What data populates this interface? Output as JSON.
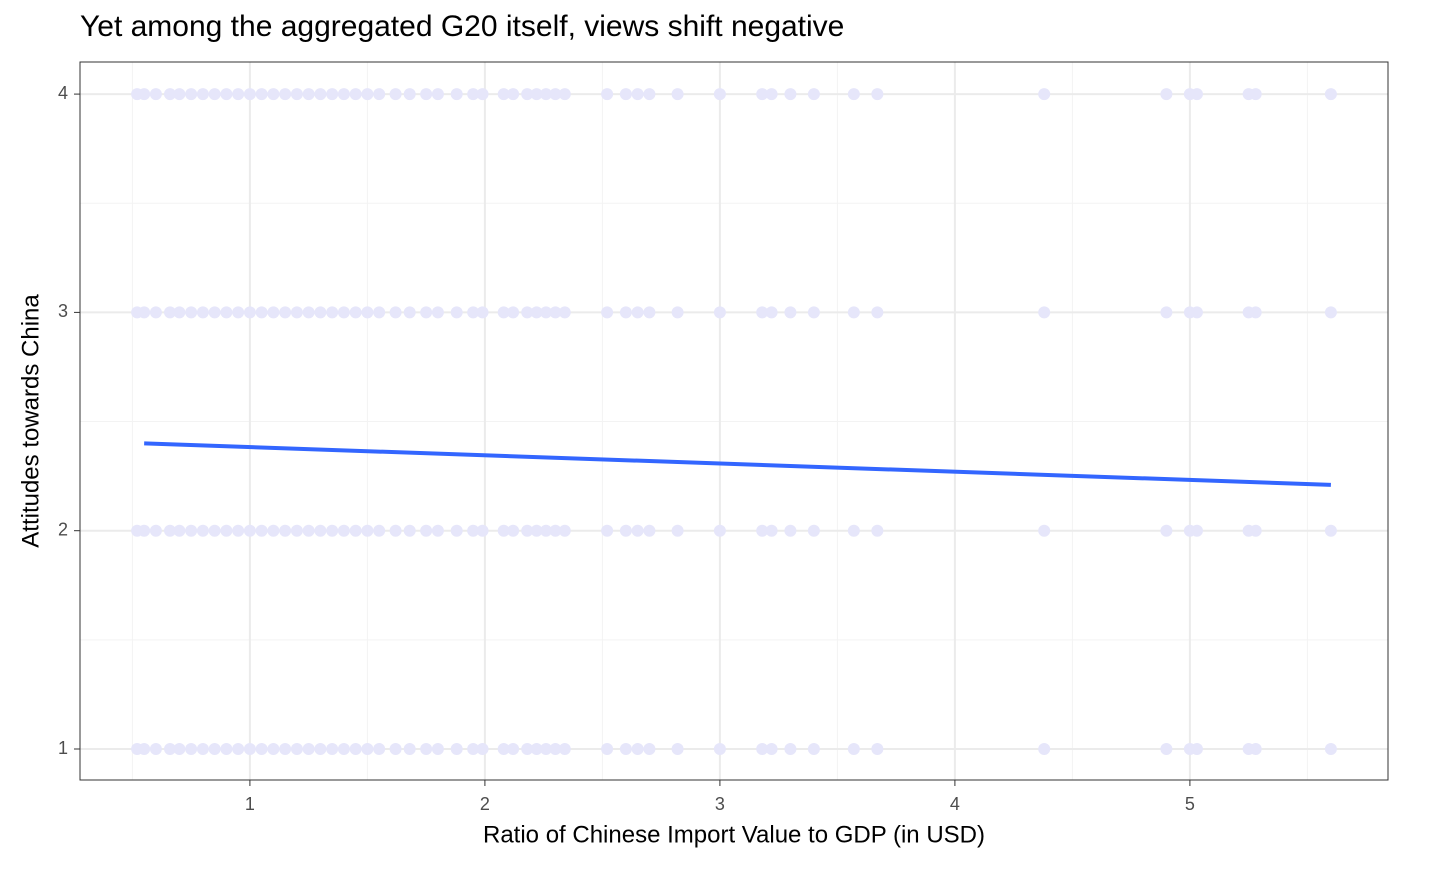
{
  "chart_data": {
    "type": "scatter",
    "title": "Yet among the aggregated G20 itself, views shift negative",
    "xlabel": "Ratio of Chinese Import Value to GDP (in USD)",
    "ylabel": "Attitudes towards China",
    "xlim": [
      0.277,
      5.843
    ],
    "ylim": [
      0.858,
      4.147
    ],
    "xticks": [
      1,
      2,
      3,
      4,
      5
    ],
    "yticks": [
      1,
      2,
      3,
      4
    ],
    "grid": true,
    "series": [
      {
        "color": "#e6e6fa",
        "x": [
          0.52,
          0.55,
          0.6,
          0.66,
          0.7,
          0.75,
          0.8,
          0.85,
          0.9,
          0.95,
          1.0,
          1.05,
          1.1,
          1.15,
          1.2,
          1.25,
          1.3,
          1.35,
          1.4,
          1.45,
          1.5,
          1.55,
          1.62,
          1.68,
          1.75,
          1.8,
          1.88,
          1.95,
          1.99,
          2.08,
          2.12,
          2.18,
          2.22,
          2.26,
          2.3,
          2.34,
          2.52,
          2.6,
          2.65,
          2.7,
          2.82,
          3.0,
          3.18,
          3.22,
          3.3,
          3.4,
          3.57,
          3.67,
          4.38,
          4.9,
          5.0,
          5.03,
          5.25,
          5.28,
          5.6,
          0.52,
          0.55,
          0.6,
          0.66,
          0.7,
          0.75,
          0.8,
          0.85,
          0.9,
          0.95,
          1.0,
          1.05,
          1.1,
          1.15,
          1.2,
          1.25,
          1.3,
          1.35,
          1.4,
          1.45,
          1.5,
          1.55,
          1.62,
          1.68,
          1.75,
          1.8,
          1.88,
          1.95,
          1.99,
          2.08,
          2.12,
          2.18,
          2.22,
          2.26,
          2.3,
          2.34,
          2.52,
          2.6,
          2.65,
          2.7,
          2.82,
          3.0,
          3.18,
          3.22,
          3.3,
          3.4,
          3.57,
          3.67,
          4.38,
          4.9,
          5.0,
          5.03,
          5.25,
          5.28,
          5.6,
          0.52,
          0.55,
          0.6,
          0.66,
          0.7,
          0.75,
          0.8,
          0.85,
          0.9,
          0.95,
          1.0,
          1.05,
          1.1,
          1.15,
          1.2,
          1.25,
          1.3,
          1.35,
          1.4,
          1.45,
          1.5,
          1.55,
          1.62,
          1.68,
          1.75,
          1.8,
          1.88,
          1.95,
          1.99,
          2.08,
          2.12,
          2.18,
          2.22,
          2.26,
          2.3,
          2.34,
          2.52,
          2.6,
          2.65,
          2.7,
          2.82,
          3.0,
          3.18,
          3.22,
          3.3,
          3.4,
          3.57,
          3.67,
          4.38,
          4.9,
          5.0,
          5.03,
          5.25,
          5.28,
          5.6,
          0.52,
          0.55,
          0.6,
          0.66,
          0.7,
          0.75,
          0.8,
          0.85,
          0.9,
          0.95,
          1.0,
          1.05,
          1.1,
          1.15,
          1.2,
          1.25,
          1.3,
          1.35,
          1.4,
          1.45,
          1.5,
          1.55,
          1.62,
          1.68,
          1.75,
          1.8,
          1.88,
          1.95,
          1.99,
          2.08,
          2.12,
          2.18,
          2.22,
          2.26,
          2.3,
          2.34,
          2.52,
          2.6,
          2.65,
          2.7,
          2.82,
          3.0,
          3.18,
          3.22,
          3.3,
          3.4,
          3.57,
          3.67,
          4.38,
          4.9,
          5.0,
          5.03,
          5.25,
          5.28,
          5.6
        ],
        "values": [
          1,
          1,
          1,
          1,
          1,
          1,
          1,
          1,
          1,
          1,
          1,
          1,
          1,
          1,
          1,
          1,
          1,
          1,
          1,
          1,
          1,
          1,
          1,
          1,
          1,
          1,
          1,
          1,
          1,
          1,
          1,
          1,
          1,
          1,
          1,
          1,
          1,
          1,
          1,
          1,
          1,
          1,
          1,
          1,
          1,
          1,
          1,
          1,
          1,
          1,
          1,
          1,
          1,
          1,
          1,
          2,
          2,
          2,
          2,
          2,
          2,
          2,
          2,
          2,
          2,
          2,
          2,
          2,
          2,
          2,
          2,
          2,
          2,
          2,
          2,
          2,
          2,
          2,
          2,
          2,
          2,
          2,
          2,
          2,
          2,
          2,
          2,
          2,
          2,
          2,
          2,
          2,
          2,
          2,
          2,
          2,
          2,
          2,
          2,
          2,
          2,
          2,
          2,
          2,
          2,
          2,
          2,
          2,
          2,
          2,
          3,
          3,
          3,
          3,
          3,
          3,
          3,
          3,
          3,
          3,
          3,
          3,
          3,
          3,
          3,
          3,
          3,
          3,
          3,
          3,
          3,
          3,
          3,
          3,
          3,
          3,
          3,
          3,
          3,
          3,
          3,
          3,
          3,
          3,
          3,
          3,
          3,
          3,
          3,
          3,
          3,
          3,
          3,
          3,
          3,
          3,
          3,
          3,
          3,
          3,
          3,
          3,
          3,
          3,
          3,
          4,
          4,
          4,
          4,
          4,
          4,
          4,
          4,
          4,
          4,
          4,
          4,
          4,
          4,
          4,
          4,
          4,
          4,
          4,
          4,
          4,
          4,
          4,
          4,
          4,
          4,
          4,
          4,
          4,
          4,
          4,
          4,
          4,
          4,
          4,
          4,
          4,
          4,
          4,
          4,
          4,
          4,
          4,
          4,
          4,
          4,
          4,
          4,
          4,
          4,
          4,
          4,
          4,
          4,
          4
        ]
      }
    ],
    "trend": {
      "color": "#3366ff",
      "x": [
        0.55,
        5.6
      ],
      "values": [
        2.4,
        2.21
      ]
    }
  }
}
